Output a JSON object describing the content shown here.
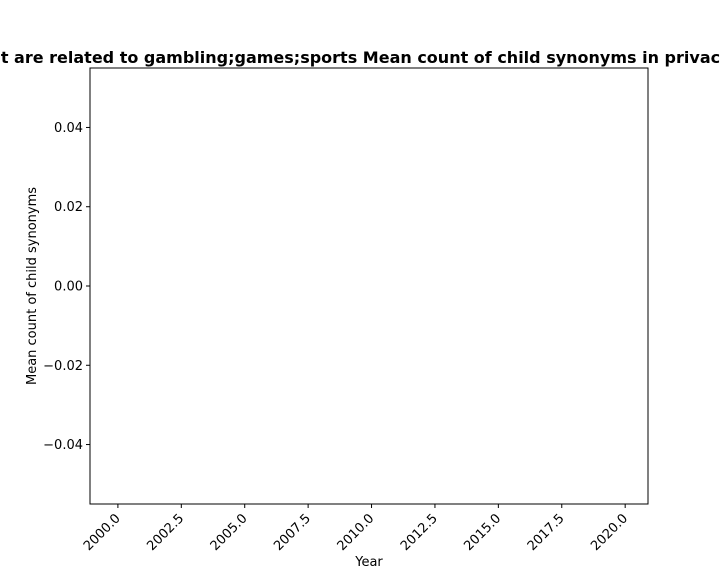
{
  "chart_data": {
    "type": "line",
    "title": "Mean count of child synonyms in privacy policies of apps that are related to gambling;games;sports Mean count of child synonyms in privacy policies of apps that are related to gambling;games;sports",
    "xlabel": "Year",
    "ylabel": "Mean count of child synonyms",
    "xlim": [
      1998.9,
      2020.9
    ],
    "ylim": [
      -0.055,
      0.055
    ],
    "xticks": [
      "2000.0",
      "2002.5",
      "2005.0",
      "2007.5",
      "2010.0",
      "2012.5",
      "2015.0",
      "2017.5",
      "2020.0"
    ],
    "xtick_values": [
      2000,
      2002.5,
      2005,
      2007.5,
      2010,
      2012.5,
      2015,
      2017.5,
      2020
    ],
    "yticks": [
      "0.04",
      "0.02",
      "0.00",
      "−0.02",
      "−0.04"
    ],
    "ytick_values": [
      0.04,
      0.02,
      0,
      -0.02,
      -0.04
    ],
    "series": [],
    "grid": false,
    "legend": false
  }
}
